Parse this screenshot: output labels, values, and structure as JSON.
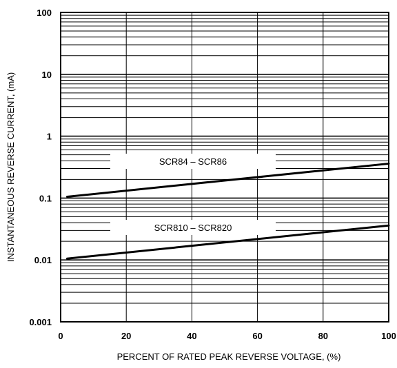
{
  "chart_data": {
    "type": "line",
    "xlabel": "PERCENT OF RATED PEAK REVERSE VOLTAGE, (%)",
    "ylabel": "INSTANTANEOUS  REVERSE CURRENT, (mA)",
    "xlim": [
      0,
      100
    ],
    "ylim": [
      0.001,
      100
    ],
    "yscale": "log",
    "grid": true,
    "x_ticks": [
      "0",
      "20",
      "40",
      "60",
      "80",
      "100"
    ],
    "y_ticks": [
      "0.001",
      "0.01",
      "0.1",
      "1",
      "10",
      "100"
    ],
    "series": [
      {
        "name": "SCR84 – SCR86",
        "x": [
          2,
          100
        ],
        "y": [
          0.105,
          0.36
        ]
      },
      {
        "name": "SCR810 – SCR820",
        "x": [
          2,
          100
        ],
        "y": [
          0.0105,
          0.036
        ]
      }
    ]
  }
}
